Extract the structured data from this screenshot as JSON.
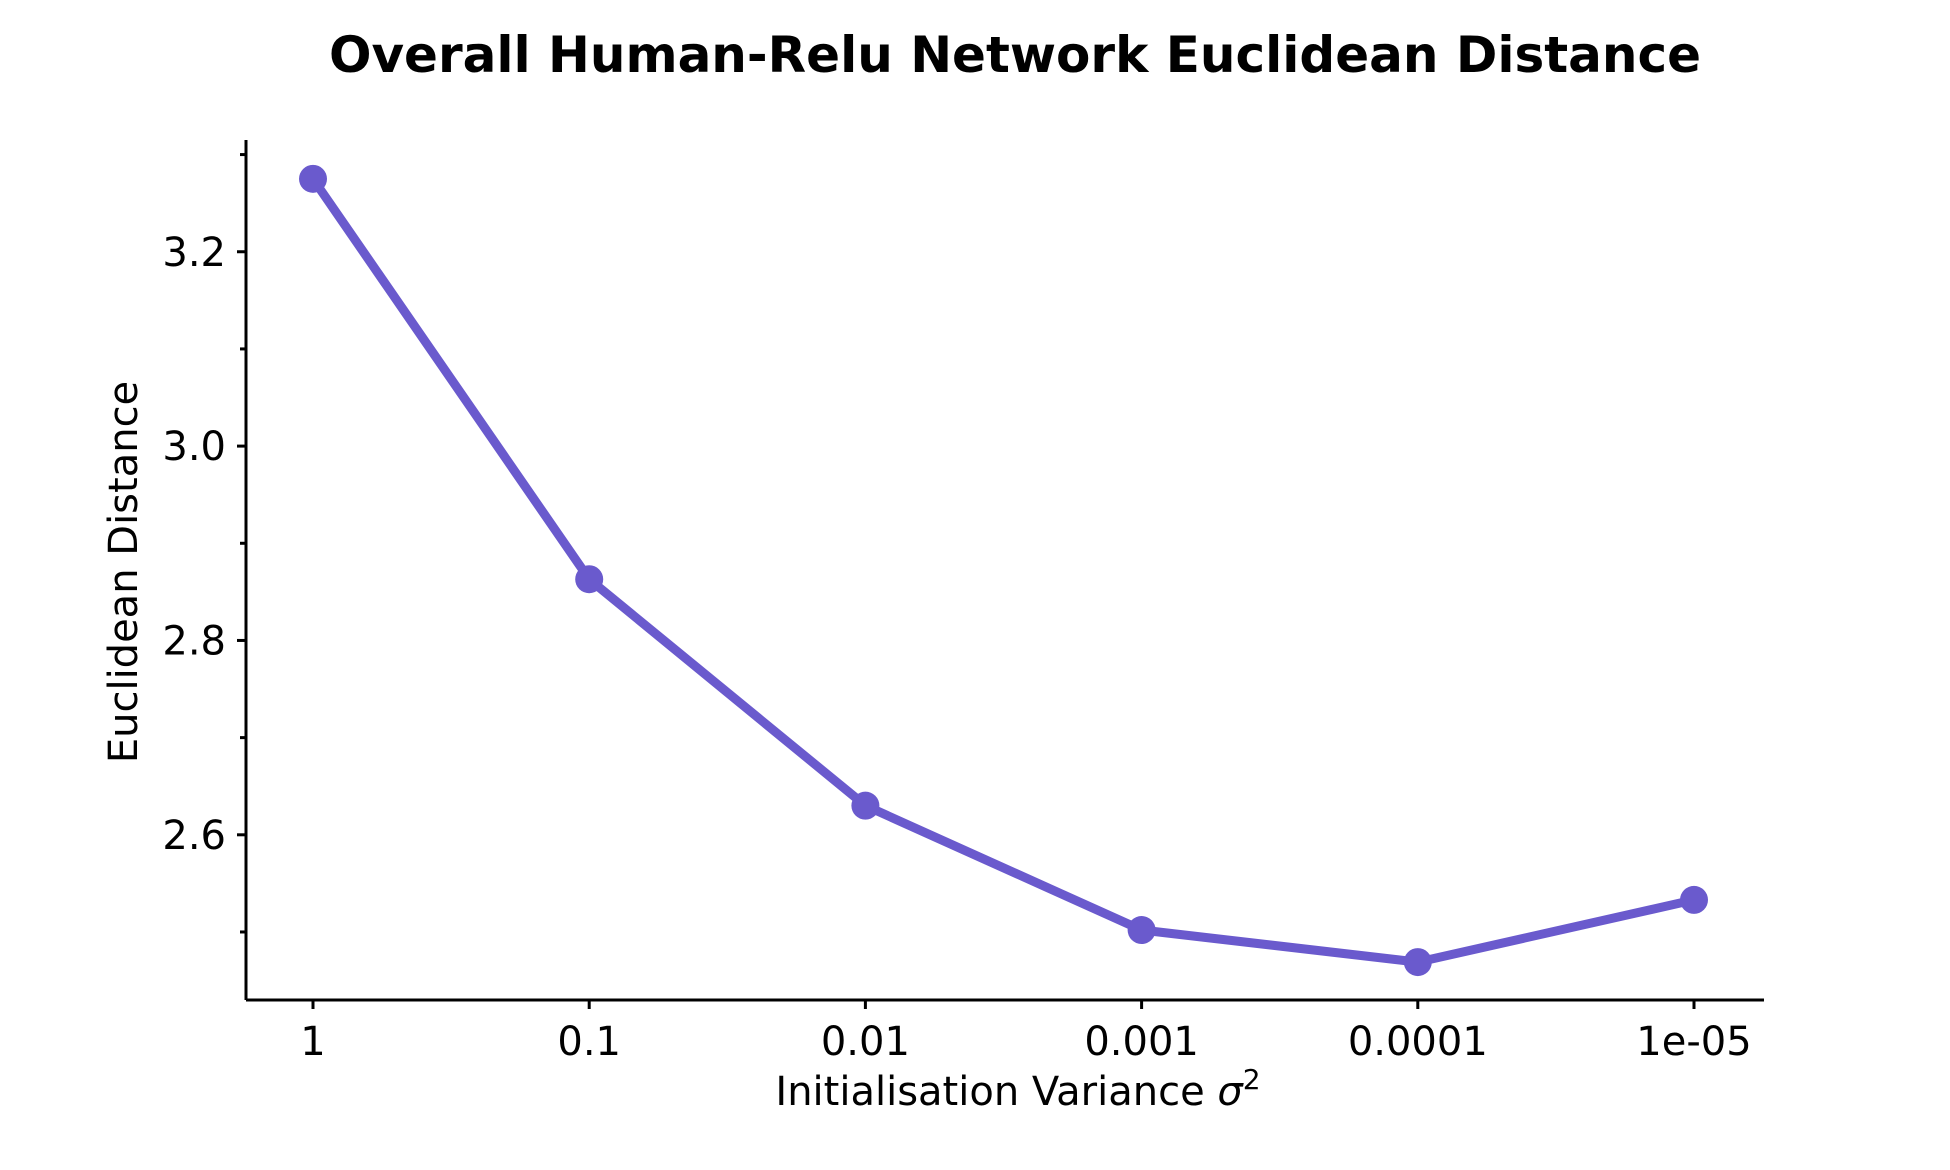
{
  "chart_data": {
    "type": "line",
    "title": "Overall Human-Relu Network Euclidean Distance",
    "xlabel": "Initialisation Variance",
    "xlabel_symbol": "σ",
    "xlabel_superscript": "2",
    "ylabel": "Euclidean Distance",
    "categories": [
      "1",
      "0.1",
      "0.01",
      "0.001",
      "0.0001",
      "1e-05"
    ],
    "series": [
      {
        "values": [
          3.275,
          2.863,
          2.63,
          2.502,
          2.469,
          2.533
        ],
        "color": "#6A5ACD"
      }
    ],
    "ylim": [
      2.43,
      3.315
    ],
    "yticks": [
      2.6,
      2.8,
      3.0,
      3.2
    ],
    "yticklabels": [
      "2.6",
      "2.8",
      "3.0",
      "3.2"
    ],
    "yminorticks": [
      2.5,
      2.7,
      2.9,
      3.1,
      3.3
    ],
    "grid": false,
    "legend": false
  }
}
